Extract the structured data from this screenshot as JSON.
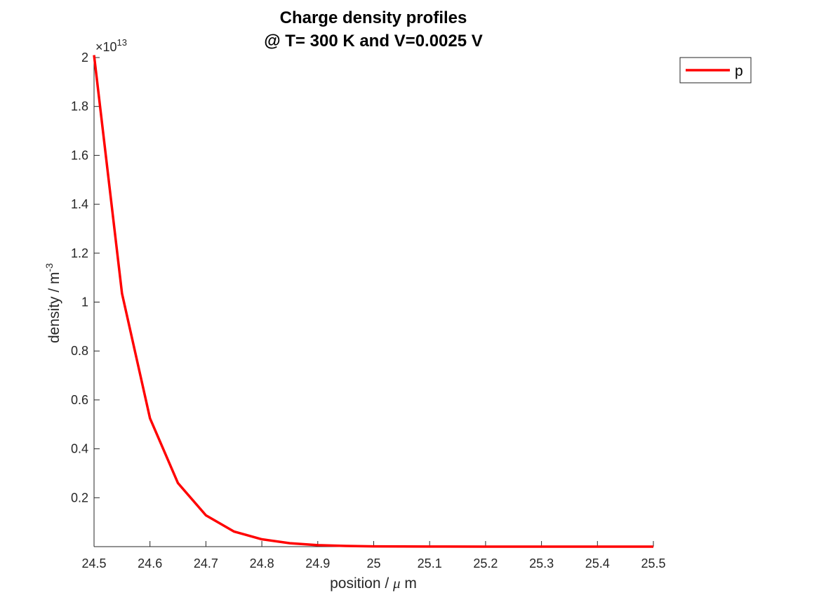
{
  "chart_data": {
    "type": "line",
    "title": [
      "Charge density profiles",
      "@ T= 300 K and V=0.0025 V"
    ],
    "xlabel_prefix": "position / ",
    "xlabel_greek": "μ",
    "xlabel_suffix": " m",
    "ylabel": "density / m",
    "ylabel_superscript": "-3",
    "y_exponent_prefix": "×10",
    "y_exponent_power": "13",
    "xlim": [
      24.5,
      25.5
    ],
    "ylim": [
      0,
      2.0
    ],
    "y_multiplier": 10000000000000.0,
    "x_ticks": [
      "24.5",
      "24.6",
      "24.7",
      "24.8",
      "24.9",
      "25",
      "25.1",
      "25.2",
      "25.3",
      "25.4",
      "25.5"
    ],
    "y_ticks": [
      "0.2",
      "0.4",
      "0.6",
      "0.8",
      "1",
      "1.2",
      "1.4",
      "1.6",
      "1.8",
      "2"
    ],
    "grid": false,
    "legend_position": "top-right-outside",
    "colors": {
      "series_p": "#ff0000",
      "axis": "#262626"
    },
    "series": [
      {
        "name": "p",
        "x": [
          24.5,
          24.55,
          24.6,
          24.65,
          24.7,
          24.75,
          24.8,
          24.85,
          24.9,
          24.95,
          25.0,
          25.1,
          25.2,
          25.3,
          25.4,
          25.5
        ],
        "y": [
          2.01,
          1.035,
          0.525,
          0.26,
          0.128,
          0.062,
          0.03,
          0.014,
          0.006,
          0.003,
          0.001,
          0.0003,
          0.0001,
          5e-05,
          2e-05,
          1e-05
        ]
      }
    ]
  }
}
